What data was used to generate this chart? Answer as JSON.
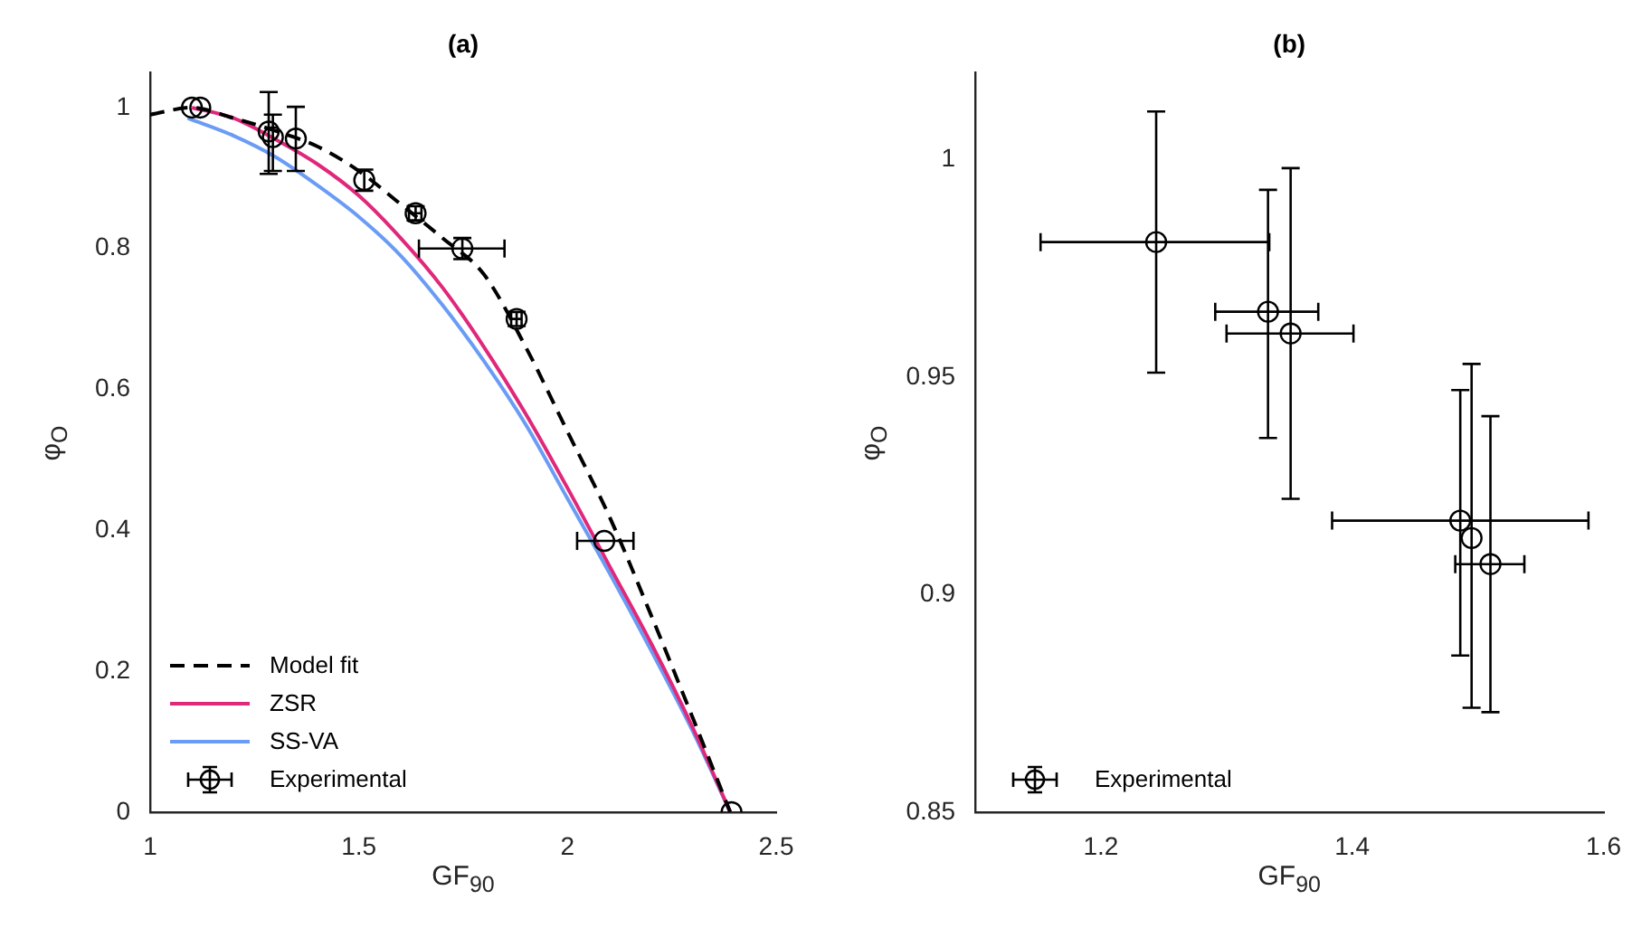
{
  "chart_data": [
    {
      "type": "line",
      "title": "(a)",
      "xlabel": "GF$_{90}$",
      "ylabel": "φ$_{O}$",
      "xlim": [
        1,
        2.5
      ],
      "ylim": [
        0,
        1.05
      ],
      "xticks": [
        1,
        1.5,
        2,
        2.5
      ],
      "yticks": [
        0,
        0.2,
        0.4,
        0.6,
        0.8,
        1
      ],
      "legend": "bottom left",
      "series": [
        {
          "name": "Model fit",
          "line_style": "dashed",
          "color": "#000000",
          "x": [
            1,
            1.1,
            1.2,
            1.3,
            1.4,
            1.5,
            1.6,
            1.7,
            1.8,
            1.9,
            2,
            2.1,
            2.2,
            2.3,
            2.39
          ],
          "values": [
            0.99,
            1,
            0.985,
            0.967,
            0.945,
            0.91,
            0.863,
            0.815,
            0.763,
            0.66,
            0.54,
            0.42,
            0.28,
            0.134,
            0
          ]
        },
        {
          "name": "ZSR",
          "line_style": "solid",
          "color": "#e0287a",
          "x": [
            1.1,
            1.2,
            1.3,
            1.4,
            1.5,
            1.6,
            1.7,
            1.8,
            1.9,
            2,
            2.1,
            2.2,
            2.3,
            2.39
          ],
          "values": [
            1,
            0.985,
            0.955,
            0.92,
            0.875,
            0.815,
            0.745,
            0.66,
            0.565,
            0.46,
            0.35,
            0.24,
            0.12,
            0
          ]
        },
        {
          "name": "SS-VA",
          "line_style": "solid",
          "color": "#6a9cf5",
          "x": [
            1.09,
            1.2,
            1.3,
            1.4,
            1.5,
            1.6,
            1.7,
            1.8,
            1.9,
            2,
            2.1,
            2.2,
            2.3,
            2.39
          ],
          "values": [
            0.985,
            0.96,
            0.93,
            0.89,
            0.845,
            0.79,
            0.72,
            0.64,
            0.55,
            0.445,
            0.34,
            0.23,
            0.115,
            0
          ]
        },
        {
          "name": "Experimental",
          "type": "scatter",
          "marker": "circle",
          "color": "#000000",
          "x": [
            1.1,
            1.12,
            1.284,
            1.294,
            1.349,
            1.513,
            1.636,
            1.748,
            1.878,
            2.088,
            2.393
          ],
          "values": [
            1,
            1,
            0.966,
            0.958,
            0.956,
            0.897,
            0.85,
            0.8,
            0.7,
            0.385,
            0
          ],
          "errors": [
            null,
            null,
            [
              0.906,
              1.022
            ],
            [
              0.91,
              0.99
            ],
            [
              0.91,
              1.001
            ],
            [
              0.882,
              0.912
            ],
            [
              0.84,
              0.86
            ],
            [
              0.785,
              0.815
            ],
            [
              0.69,
              0.71
            ],
            null,
            null
          ],
          "xerrors": [
            null,
            null,
            null,
            null,
            null,
            null,
            [
              1.62,
              1.65
            ],
            [
              1.644,
              1.849
            ],
            [
              1.865,
              1.89
            ],
            [
              2.023,
              2.158
            ],
            null
          ]
        }
      ]
    },
    {
      "type": "scatter",
      "title": "(b)",
      "xlabel": "GF$_{90}$",
      "ylabel": "φ$_{O}$",
      "xlim": [
        1.1,
        1.6
      ],
      "ylim": [
        0.85,
        1.02
      ],
      "xticks": [
        1.2,
        1.4,
        1.6
      ],
      "yticks": [
        0.85,
        0.9,
        0.95,
        1
      ],
      "legend": "bottom left",
      "series": [
        {
          "name": "Experimental",
          "marker": "circle",
          "color": "#000000",
          "x": [
            1.244,
            1.333,
            1.351,
            1.486,
            1.495,
            1.51
          ],
          "values": [
            0.981,
            0.965,
            0.96,
            0.917,
            0.913,
            0.907
          ],
          "errors": [
            [
              0.951,
              1.011
            ],
            [
              0.936,
              0.993
            ],
            [
              0.922,
              0.998
            ],
            [
              0.886,
              0.947
            ],
            [
              0.874,
              0.953
            ],
            [
              0.873,
              0.941
            ]
          ],
          "xerrors": [
            [
              1.152,
              1.334
            ],
            [
              1.291,
              1.373
            ],
            [
              1.3,
              1.401
            ],
            [
              1.384,
              1.588
            ],
            null,
            [
              1.482,
              1.537
            ]
          ]
        }
      ]
    }
  ]
}
